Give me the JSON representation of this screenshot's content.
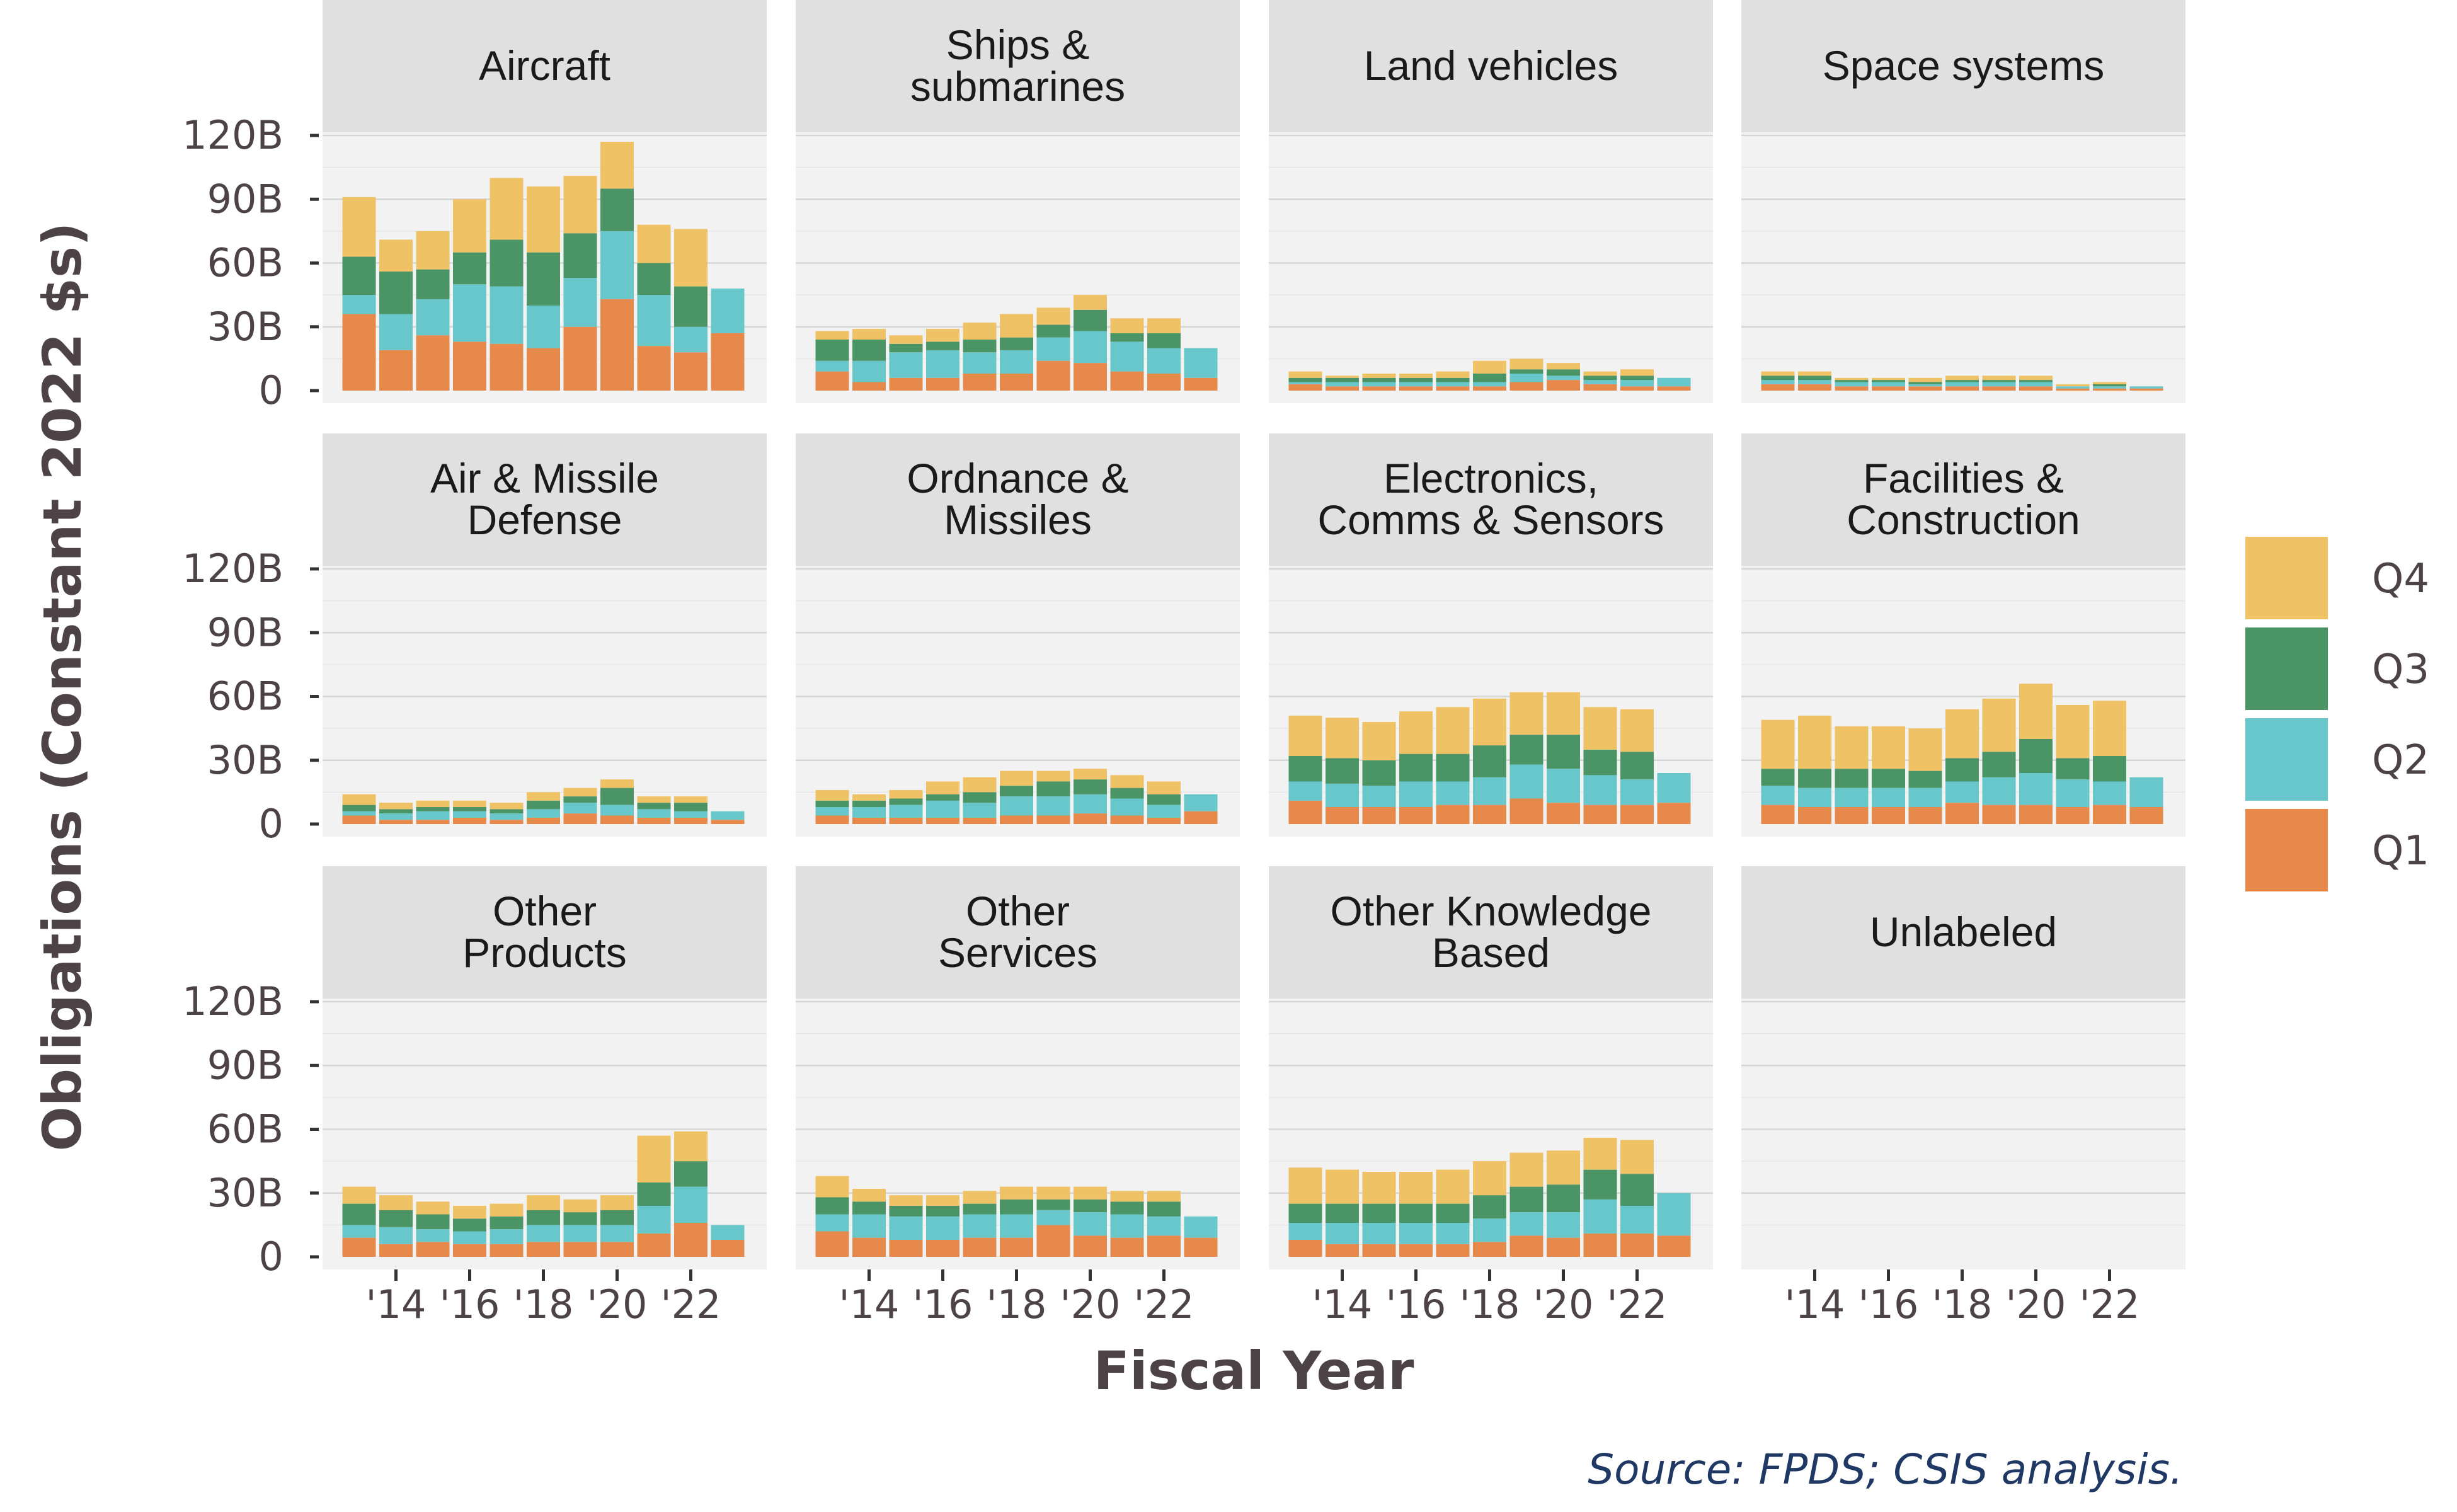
{
  "chart_data": {
    "type": "bar",
    "stacked": true,
    "facet_layout": {
      "rows": 3,
      "cols": 4
    },
    "ylabel": "Obligations (Constant 2022 $s)",
    "xlabel": "Fiscal Year",
    "ylim": [
      0,
      135
    ],
    "y_ticks": [
      0,
      30,
      60,
      90,
      120
    ],
    "y_tick_labels": [
      "0",
      "30B",
      "60B",
      "90B",
      "120B"
    ],
    "x_values": [
      2013,
      2014,
      2015,
      2016,
      2017,
      2018,
      2019,
      2020,
      2021,
      2022,
      2023
    ],
    "x_ticks": [
      2014,
      2016,
      2018,
      2020,
      2022
    ],
    "x_tick_labels": [
      "'14",
      "'16",
      "'18",
      "'20",
      "'22"
    ],
    "grid": true,
    "legend": {
      "position": "right"
    },
    "series": [
      {
        "name": "Q1",
        "color": "#e6894a"
      },
      {
        "name": "Q2",
        "color": "#68c7cb"
      },
      {
        "name": "Q3",
        "color": "#4a9466"
      },
      {
        "name": "Q4",
        "color": "#efc266"
      }
    ],
    "legend_order": [
      "Q4",
      "Q3",
      "Q2",
      "Q1"
    ],
    "source": "Source: FPDS; CSIS analysis.",
    "panels": [
      {
        "title": [
          "Aircraft"
        ],
        "q1": [
          36,
          19,
          26,
          23,
          22,
          20,
          30,
          43,
          21,
          18,
          27
        ],
        "q2": [
          9,
          17,
          17,
          27,
          27,
          20,
          23,
          32,
          24,
          12,
          21
        ],
        "q3": [
          18,
          20,
          14,
          15,
          22,
          25,
          21,
          20,
          15,
          19,
          0
        ],
        "q4": [
          28,
          15,
          18,
          25,
          29,
          31,
          27,
          22,
          18,
          27,
          0
        ]
      },
      {
        "title": [
          "Ships &",
          "submarines"
        ],
        "q1": [
          9,
          4,
          6,
          6,
          8,
          8,
          14,
          13,
          9,
          8,
          6
        ],
        "q2": [
          5,
          10,
          12,
          13,
          10,
          11,
          11,
          15,
          14,
          12,
          14
        ],
        "q3": [
          10,
          10,
          4,
          4,
          6,
          6,
          6,
          10,
          4,
          7,
          0
        ],
        "q4": [
          4,
          5,
          4,
          6,
          8,
          11,
          8,
          7,
          7,
          7,
          0
        ]
      },
      {
        "title": [
          "Land vehicles"
        ],
        "q1": [
          3,
          2,
          2,
          2,
          2,
          2,
          4,
          5,
          3,
          2,
          2
        ],
        "q2": [
          1,
          2,
          2,
          2,
          2,
          2,
          4,
          2,
          2,
          3,
          4
        ],
        "q3": [
          2,
          2,
          2,
          2,
          2,
          4,
          2,
          3,
          2,
          2,
          0
        ],
        "q4": [
          3,
          1,
          2,
          2,
          3,
          6,
          5,
          3,
          2,
          3,
          0
        ]
      },
      {
        "title": [
          "Space systems"
        ],
        "q1": [
          3,
          3,
          2,
          2,
          2,
          2,
          2,
          2,
          1,
          1,
          1
        ],
        "q2": [
          2,
          2,
          2,
          2,
          1,
          2,
          2,
          2,
          1,
          1,
          1
        ],
        "q3": [
          2,
          2,
          1,
          1,
          1,
          1,
          1,
          1,
          0,
          1,
          0
        ],
        "q4": [
          2,
          2,
          1,
          1,
          2,
          2,
          2,
          2,
          1,
          1,
          0
        ]
      },
      {
        "title": [
          "Air & Missile",
          "Defense"
        ],
        "q1": [
          4,
          2,
          2,
          3,
          2,
          3,
          5,
          4,
          3,
          3,
          2
        ],
        "q2": [
          2,
          3,
          4,
          3,
          3,
          4,
          5,
          5,
          4,
          3,
          4
        ],
        "q3": [
          3,
          2,
          2,
          2,
          2,
          4,
          3,
          8,
          3,
          4,
          0
        ],
        "q4": [
          5,
          3,
          3,
          3,
          3,
          4,
          4,
          4,
          3,
          3,
          0
        ]
      },
      {
        "title": [
          "Ordnance &",
          "Missiles"
        ],
        "q1": [
          4,
          3,
          3,
          3,
          3,
          4,
          4,
          5,
          4,
          3,
          6
        ],
        "q2": [
          4,
          5,
          6,
          8,
          7,
          9,
          9,
          9,
          8,
          6,
          8
        ],
        "q3": [
          3,
          3,
          3,
          3,
          5,
          5,
          7,
          7,
          5,
          5,
          0
        ],
        "q4": [
          5,
          3,
          4,
          6,
          7,
          7,
          5,
          5,
          6,
          6,
          0
        ]
      },
      {
        "title": [
          "Electronics,",
          "Comms & Sensors"
        ],
        "q1": [
          11,
          8,
          8,
          8,
          9,
          9,
          12,
          10,
          9,
          9,
          10
        ],
        "q2": [
          9,
          11,
          10,
          12,
          11,
          13,
          16,
          16,
          14,
          12,
          14
        ],
        "q3": [
          12,
          12,
          12,
          13,
          13,
          15,
          14,
          16,
          12,
          13,
          0
        ],
        "q4": [
          19,
          19,
          18,
          20,
          22,
          22,
          20,
          20,
          20,
          20,
          0
        ]
      },
      {
        "title": [
          "Facilities &",
          "Construction"
        ],
        "q1": [
          9,
          8,
          8,
          8,
          8,
          10,
          9,
          9,
          8,
          9,
          8
        ],
        "q2": [
          9,
          9,
          9,
          9,
          9,
          10,
          13,
          15,
          13,
          11,
          14
        ],
        "q3": [
          8,
          9,
          9,
          9,
          8,
          11,
          12,
          16,
          10,
          12,
          0
        ],
        "q4": [
          23,
          25,
          20,
          20,
          20,
          23,
          25,
          26,
          25,
          26,
          0
        ]
      },
      {
        "title": [
          "Other",
          "Products"
        ],
        "q1": [
          9,
          6,
          7,
          6,
          6,
          7,
          7,
          7,
          11,
          16,
          8
        ],
        "q2": [
          6,
          8,
          6,
          6,
          7,
          8,
          8,
          8,
          13,
          17,
          7
        ],
        "q3": [
          10,
          8,
          7,
          6,
          6,
          7,
          6,
          7,
          11,
          12,
          0
        ],
        "q4": [
          8,
          7,
          6,
          6,
          6,
          7,
          6,
          7,
          22,
          14,
          0
        ]
      },
      {
        "title": [
          "Other",
          "Services"
        ],
        "q1": [
          12,
          9,
          8,
          8,
          9,
          9,
          15,
          10,
          9,
          10,
          9
        ],
        "q2": [
          8,
          11,
          11,
          11,
          11,
          11,
          7,
          11,
          11,
          9,
          10
        ],
        "q3": [
          8,
          6,
          5,
          5,
          5,
          7,
          5,
          6,
          6,
          7,
          0
        ],
        "q4": [
          10,
          6,
          5,
          5,
          6,
          6,
          6,
          6,
          5,
          5,
          0
        ]
      },
      {
        "title": [
          "Other Knowledge",
          "Based"
        ],
        "q1": [
          8,
          6,
          6,
          6,
          6,
          7,
          10,
          9,
          11,
          11,
          10
        ],
        "q2": [
          8,
          10,
          10,
          10,
          10,
          11,
          11,
          12,
          16,
          13,
          20
        ],
        "q3": [
          9,
          9,
          9,
          9,
          9,
          11,
          12,
          13,
          14,
          15,
          0
        ],
        "q4": [
          17,
          16,
          15,
          15,
          16,
          16,
          16,
          16,
          15,
          16,
          0
        ]
      },
      {
        "title": [
          "Unlabeled"
        ],
        "q1": [
          0,
          0,
          0,
          0,
          0,
          0,
          0,
          0,
          0,
          0,
          0
        ],
        "q2": [
          0,
          0,
          0,
          0,
          0,
          0,
          0,
          0,
          0,
          0,
          0
        ],
        "q3": [
          0,
          0,
          0,
          0,
          0,
          0,
          0,
          0,
          0,
          0,
          0
        ],
        "q4": [
          0,
          0,
          0,
          0,
          0,
          0,
          0,
          0,
          0,
          0,
          0
        ]
      }
    ]
  }
}
